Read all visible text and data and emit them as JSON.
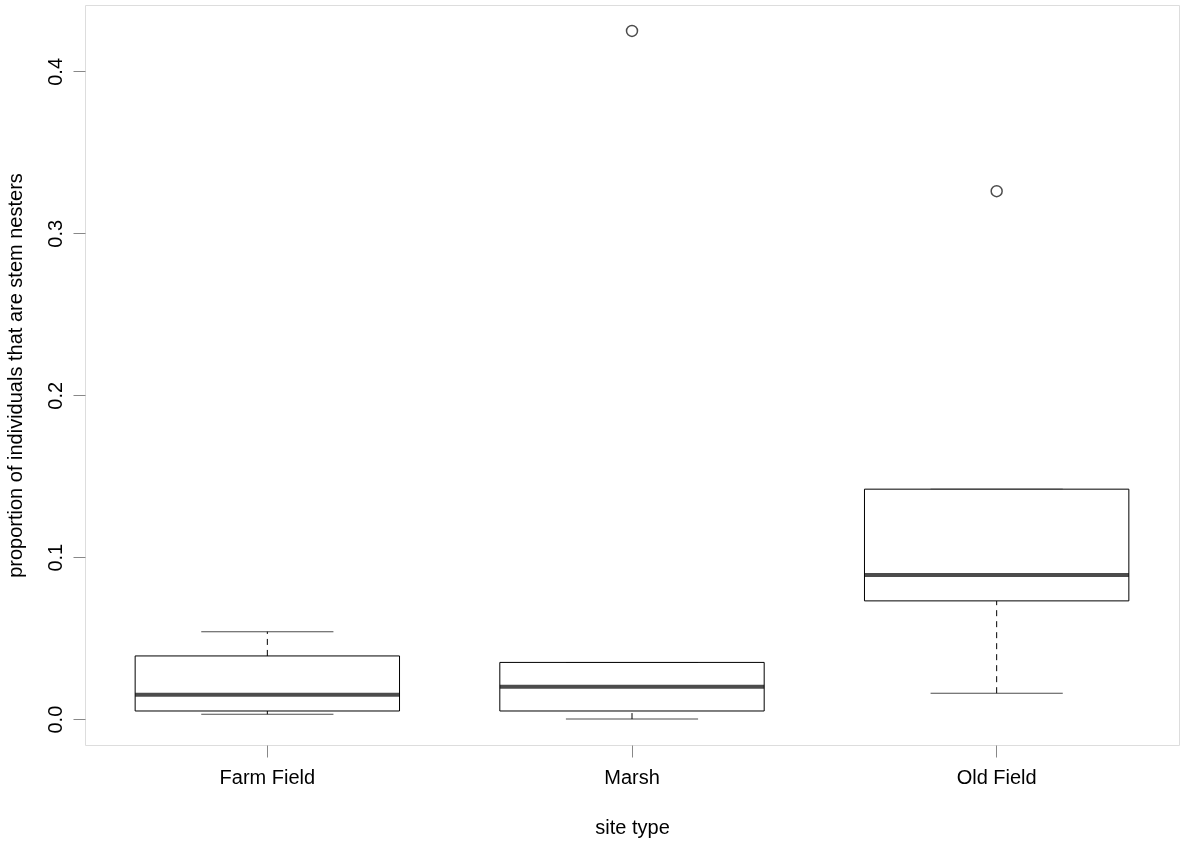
{
  "chart_data": {
    "type": "box",
    "xlabel": "site type",
    "ylabel": "proportion of individuals that are stem nesters",
    "categories": [
      "Farm Field",
      "Marsh",
      "Old Field"
    ],
    "boxes": [
      {
        "low": 0.003,
        "q1": 0.005,
        "median": 0.015,
        "q3": 0.039,
        "high": 0.054
      },
      {
        "low": 0.0,
        "q1": 0.005,
        "median": 0.02,
        "q3": 0.035,
        "high": 0.035,
        "outliers": [
          0.425
        ]
      },
      {
        "low": 0.016,
        "q1": 0.073,
        "median": 0.089,
        "q3": 0.142,
        "high": 0.142,
        "outliers": [
          0.326
        ]
      }
    ],
    "ylim": [
      -0.016,
      0.441
    ],
    "yticks": [
      {
        "value": 0,
        "label": "0.0"
      },
      0.1,
      0.2,
      0.3,
      0.4
    ],
    "line_style": "dashed",
    "marker": "circle"
  }
}
